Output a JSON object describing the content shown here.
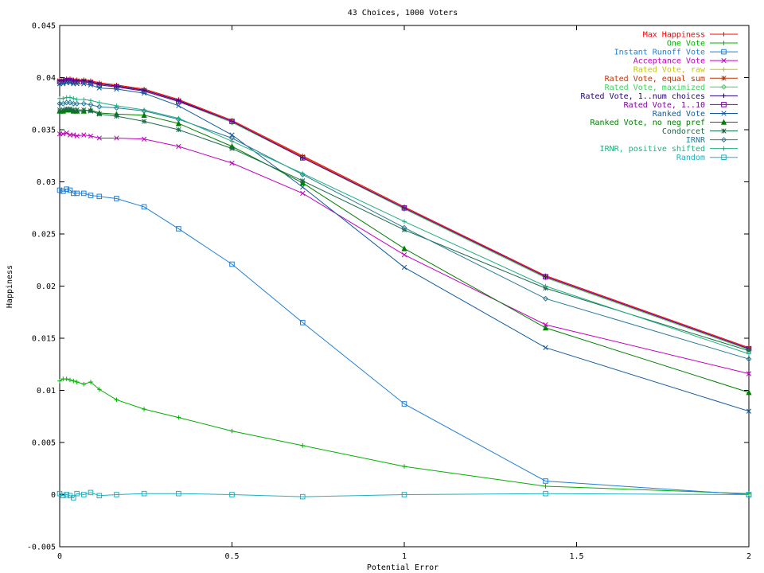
{
  "chart_data": {
    "type": "line",
    "title": "43 Choices, 1000 Voters",
    "xlabel": "Potential Error",
    "ylabel": "Happiness",
    "xlim": [
      0,
      2
    ],
    "ylim": [
      -0.005,
      0.045
    ],
    "x_ticks": [
      0,
      0.5,
      1,
      1.5,
      2
    ],
    "x_tick_labels": [
      "0",
      "0.5",
      "1",
      "1.5",
      "2"
    ],
    "y_ticks": [
      -0.005,
      0,
      0.005,
      0.01,
      0.015,
      0.02,
      0.025,
      0.03,
      0.035,
      0.04,
      0.045
    ],
    "y_tick_labels": [
      "-0.005",
      "0",
      "0.005",
      "0.01",
      "0.015",
      "0.02",
      "0.025",
      "0.03",
      "0.035",
      "0.04",
      "0.045"
    ],
    "grid": false,
    "legend_position": "top-right",
    "x": [
      0,
      0.01,
      0.02,
      0.03,
      0.04,
      0.05,
      0.07,
      0.09,
      0.115,
      0.165,
      0.245,
      0.345,
      0.5,
      0.705,
      1,
      1.41,
      2
    ],
    "series": [
      {
        "name": "Max Happiness",
        "color": "#ff0000",
        "marker": "plus",
        "values": [
          0.0398,
          0.0398,
          0.0399,
          0.0399,
          0.0398,
          0.0398,
          0.0398,
          0.0397,
          0.0395,
          0.0393,
          0.0389,
          0.0379,
          0.0359,
          0.0325,
          0.0276,
          0.021,
          0.0141
        ]
      },
      {
        "name": "One Vote",
        "color": "#00b000",
        "marker": "plus",
        "values": [
          0.0109,
          0.0111,
          0.0111,
          0.011,
          0.0109,
          0.0108,
          0.0106,
          0.0108,
          0.0101,
          0.0091,
          0.0082,
          0.0074,
          0.0061,
          0.0047,
          0.0027,
          0.0008,
          0.0001
        ]
      },
      {
        "name": "Instant Runoff Vote",
        "color": "#1f7fd8",
        "marker": "square",
        "values": [
          0.0292,
          0.0291,
          0.0293,
          0.0292,
          0.0289,
          0.0289,
          0.0289,
          0.0287,
          0.0286,
          0.0284,
          0.0276,
          0.0255,
          0.0221,
          0.0165,
          0.0087,
          0.0013,
          0.0
        ]
      },
      {
        "name": "Acceptance Vote",
        "color": "#c000c0",
        "marker": "cross",
        "values": [
          0.0346,
          0.0346,
          0.0347,
          0.0345,
          0.0345,
          0.0344,
          0.0345,
          0.0344,
          0.0342,
          0.0342,
          0.0341,
          0.0334,
          0.0318,
          0.0289,
          0.023,
          0.0163,
          0.0116
        ]
      },
      {
        "name": "Rated Vote, raw",
        "color": "#c8c800",
        "marker": "plus",
        "values": [
          0.0397,
          0.0397,
          0.0398,
          0.0398,
          0.0397,
          0.0397,
          0.0397,
          0.0396,
          0.0394,
          0.0392,
          0.0388,
          0.0378,
          0.0358,
          0.0324,
          0.0275,
          0.0209,
          0.014
        ]
      },
      {
        "name": "Rated Vote, equal sum",
        "color": "#c83200",
        "marker": "star",
        "values": [
          0.0397,
          0.0397,
          0.0398,
          0.0398,
          0.0397,
          0.0397,
          0.0397,
          0.0396,
          0.0394,
          0.0392,
          0.0388,
          0.0378,
          0.0358,
          0.0324,
          0.0275,
          0.0209,
          0.014
        ]
      },
      {
        "name": "Rated Vote, maximized",
        "color": "#40d060",
        "marker": "diamond",
        "values": [
          0.0396,
          0.0396,
          0.0397,
          0.0397,
          0.0396,
          0.0396,
          0.0396,
          0.0395,
          0.0393,
          0.0391,
          0.0387,
          0.0377,
          0.0357,
          0.0323,
          0.0274,
          0.0208,
          0.0139
        ]
      },
      {
        "name": "Rated Vote, 1..num choices",
        "color": "#200080",
        "marker": "plus",
        "values": [
          0.0397,
          0.0397,
          0.0398,
          0.0398,
          0.0397,
          0.0397,
          0.0397,
          0.0396,
          0.0394,
          0.0392,
          0.0388,
          0.0378,
          0.0358,
          0.0323,
          0.0275,
          0.0209,
          0.014
        ]
      },
      {
        "name": "Rated Vote, 1..10",
        "color": "#8000a0",
        "marker": "square",
        "values": [
          0.0396,
          0.0396,
          0.0397,
          0.0397,
          0.0396,
          0.0396,
          0.0396,
          0.0395,
          0.0393,
          0.0391,
          0.0387,
          0.0377,
          0.0358,
          0.0323,
          0.0275,
          0.0209,
          0.014
        ]
      },
      {
        "name": "Ranked Vote",
        "color": "#105a9e",
        "marker": "cross",
        "values": [
          0.0394,
          0.0394,
          0.0395,
          0.0395,
          0.0394,
          0.0394,
          0.0394,
          0.0393,
          0.039,
          0.0389,
          0.0385,
          0.0373,
          0.0345,
          0.0295,
          0.0218,
          0.0141,
          0.008
        ]
      },
      {
        "name": "Ranked Vote, no neg pref",
        "color": "#008000",
        "marker": "triangle",
        "values": [
          0.0368,
          0.0368,
          0.0369,
          0.0369,
          0.0368,
          0.0368,
          0.0368,
          0.0369,
          0.0366,
          0.0365,
          0.0364,
          0.0356,
          0.0334,
          0.0299,
          0.0236,
          0.016,
          0.0098
        ]
      },
      {
        "name": "Condorcet",
        "color": "#1a6a48",
        "marker": "star",
        "values": [
          0.0369,
          0.0369,
          0.037,
          0.037,
          0.0369,
          0.0369,
          0.0369,
          0.0368,
          0.0365,
          0.0363,
          0.0358,
          0.035,
          0.0332,
          0.0301,
          0.0254,
          0.0198,
          0.0138
        ]
      },
      {
        "name": "IRNR",
        "color": "#2a7a9a",
        "marker": "diamond",
        "values": [
          0.0375,
          0.0375,
          0.0376,
          0.0376,
          0.0375,
          0.0375,
          0.0375,
          0.0374,
          0.0372,
          0.0371,
          0.0368,
          0.036,
          0.0342,
          0.0307,
          0.0256,
          0.0188,
          0.013
        ]
      },
      {
        "name": "IRNR, positive shifted",
        "color": "#20b080",
        "marker": "plus",
        "values": [
          0.038,
          0.038,
          0.0381,
          0.0381,
          0.038,
          0.0379,
          0.0379,
          0.0378,
          0.0376,
          0.0373,
          0.0369,
          0.0361,
          0.0339,
          0.0308,
          0.0262,
          0.02,
          0.0135
        ]
      },
      {
        "name": "Random",
        "color": "#20b0c0",
        "marker": "square",
        "values": [
          0.0001,
          -0.0001,
          0.0,
          -0.0001,
          -0.0003,
          0.0001,
          0.0,
          0.0002,
          -0.0001,
          0.0,
          0.0001,
          0.0001,
          0.0,
          -0.0002,
          0.0,
          0.0001,
          0.0
        ]
      }
    ]
  }
}
